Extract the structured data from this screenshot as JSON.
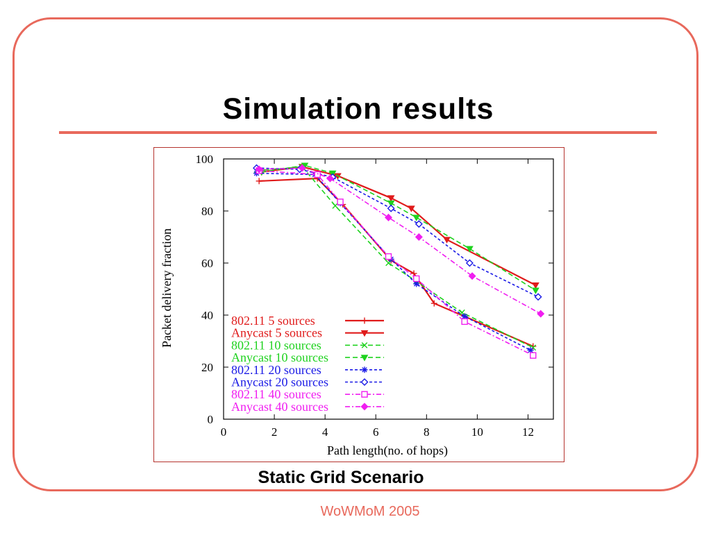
{
  "slide": {
    "title": "Simulation results",
    "caption": "Static Grid Scenario",
    "footer": "WoWMoM 2005"
  },
  "colors": {
    "accent": "#E8695C",
    "figure_border": "#B5332E",
    "text": "#000000"
  },
  "chart_data": {
    "type": "line",
    "xlabel": "Path length(no. of hops)",
    "ylabel": "Packet delivery fraction",
    "xlim": [
      0,
      13
    ],
    "ylim": [
      0,
      100
    ],
    "xticks": [
      0,
      2,
      4,
      6,
      8,
      10,
      12
    ],
    "yticks": [
      0,
      20,
      40,
      60,
      80,
      100
    ],
    "grid": false,
    "legend_position": "bottom-left",
    "series": [
      {
        "name": "802.11 5 sources",
        "color": "#E01B1B",
        "line": "solid",
        "marker": "plus",
        "x": [
          1.4,
          3.7,
          4.7,
          6.6,
          7.5,
          8.3,
          9.5,
          12.2
        ],
        "y": [
          91.5,
          92.5,
          82.5,
          61,
          56,
          44.5,
          39.5,
          28
        ]
      },
      {
        "name": "Anycast 5 sources",
        "color": "#E01B1B",
        "line": "solid",
        "marker": "triangle-down",
        "x": [
          1.5,
          3.1,
          4.5,
          6.6,
          7.4,
          8.8,
          12.3
        ],
        "y": [
          95,
          97,
          93.5,
          85,
          81,
          69,
          51.5
        ]
      },
      {
        "name": "802.11 10 sources",
        "color": "#1ED21E",
        "line": "dashed",
        "marker": "cross",
        "x": [
          1.3,
          3.1,
          4.4,
          6.5,
          7.6,
          9.4,
          12.2
        ],
        "y": [
          95.5,
          97,
          82,
          60,
          53,
          41,
          27.5
        ]
      },
      {
        "name": "Anycast 10 sources",
        "color": "#1ED21E",
        "line": "dashed",
        "marker": "triangle-down",
        "x": [
          1.5,
          3.2,
          4.3,
          6.6,
          7.6,
          9.7,
          12.3
        ],
        "y": [
          95,
          97.5,
          94.5,
          83,
          77.5,
          65.5,
          49.5
        ]
      },
      {
        "name": "802.11 20 sources",
        "color": "#1A1AE6",
        "line": "short-dashed",
        "marker": "star",
        "x": [
          1.3,
          3.6,
          4.6,
          6.6,
          7.6,
          9.5,
          12.1
        ],
        "y": [
          94.5,
          94,
          83,
          61.5,
          52,
          39.5,
          26.5
        ]
      },
      {
        "name": "Anycast 20 sources",
        "color": "#1A1AE6",
        "line": "short-dashed",
        "marker": "diamond-open",
        "x": [
          1.3,
          3.0,
          4.3,
          6.6,
          7.7,
          9.7,
          12.4
        ],
        "y": [
          96.5,
          96,
          93,
          81,
          75,
          60,
          47
        ]
      },
      {
        "name": "802.11 40 sources",
        "color": "#F01EF0",
        "line": "dash-dot",
        "marker": "square-open",
        "x": [
          1.4,
          3.7,
          4.6,
          6.5,
          7.6,
          9.5,
          12.2
        ],
        "y": [
          95.5,
          94,
          83.5,
          62.5,
          54,
          37.5,
          24.5
        ]
      },
      {
        "name": "Anycast 40 sources",
        "color": "#F01EF0",
        "line": "dash-dot",
        "marker": "diamond-filled",
        "x": [
          1.4,
          3.1,
          4.2,
          6.5,
          7.7,
          9.8,
          12.5
        ],
        "y": [
          96,
          96.5,
          92.5,
          77.5,
          70,
          55,
          40.5
        ]
      }
    ]
  }
}
